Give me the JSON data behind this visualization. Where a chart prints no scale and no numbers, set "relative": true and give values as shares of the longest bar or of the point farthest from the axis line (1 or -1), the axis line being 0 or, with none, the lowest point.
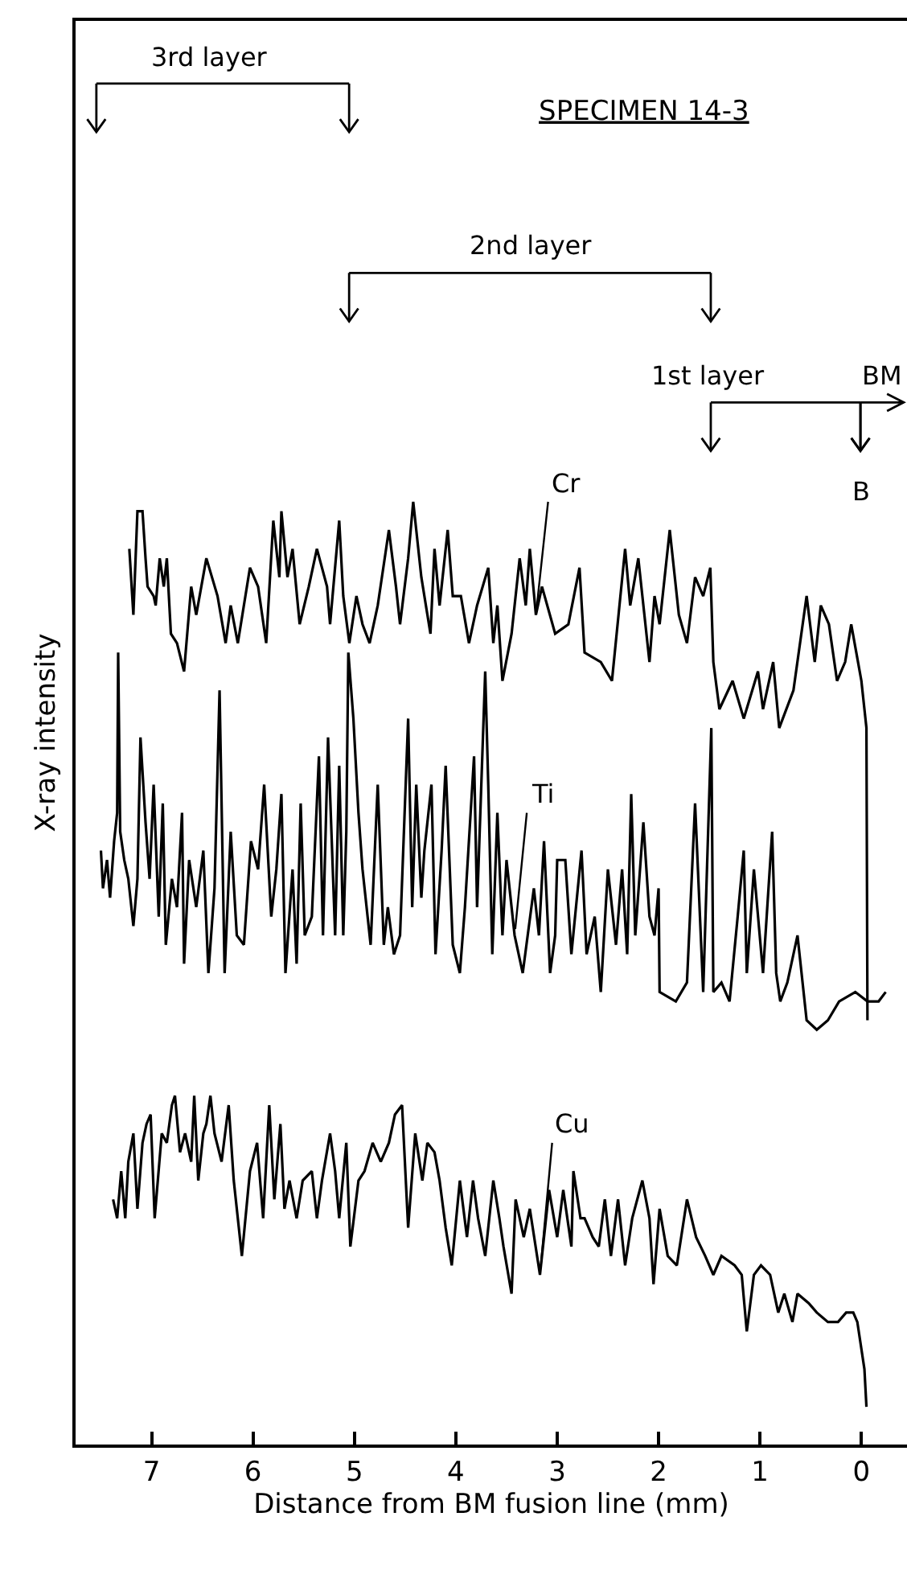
{
  "chart_data": {
    "type": "line",
    "title": "SPECIMEN 14-3",
    "xlabel": "Distance from BM fusion line (mm)",
    "ylabel": "X-ray intensity",
    "relative": true,
    "xlim": [
      7.75,
      -0.45
    ],
    "xticks": [
      7,
      6,
      5,
      4,
      3,
      2,
      1,
      0
    ],
    "legend": false,
    "series": [
      {
        "name": "Cr",
        "color": "#000000",
        "x": [
          7.22,
          7.18,
          7.14,
          7.09,
          7.06,
          7.04,
          6.98,
          6.96,
          6.92,
          6.88,
          6.85,
          6.81,
          6.75,
          6.68,
          6.61,
          6.56,
          6.46,
          6.35,
          6.27,
          6.22,
          6.15,
          6.03,
          5.95,
          5.87,
          5.8,
          5.74,
          5.72,
          5.66,
          5.61,
          5.54,
          5.45,
          5.37,
          5.27,
          5.24,
          5.15,
          5.11,
          5.05,
          4.98,
          4.92,
          4.85,
          4.77,
          4.66,
          4.59,
          4.55,
          4.47,
          4.42,
          4.34,
          4.25,
          4.21,
          4.16,
          4.08,
          4.03,
          3.95,
          3.87,
          3.79,
          3.68,
          3.63,
          3.59,
          3.54,
          3.45,
          3.37,
          3.31,
          3.27,
          3.21,
          3.15,
          3.02,
          2.89,
          2.78,
          2.73,
          2.57,
          2.46,
          2.33,
          2.28,
          2.2,
          2.09,
          2.04,
          1.99,
          1.89,
          1.8,
          1.72,
          1.64,
          1.56,
          1.49,
          1.46,
          1.4,
          1.27,
          1.16,
          1.02,
          0.97,
          0.87,
          0.81,
          0.67,
          0.54,
          0.46,
          0.4,
          0.32,
          0.24,
          0.16,
          0.1,
          0.05,
          0.0,
          -0.05,
          -0.06
        ],
        "values": [
          0.95,
          0.88,
          0.99,
          0.99,
          0.94,
          0.91,
          0.9,
          0.89,
          0.94,
          0.91,
          0.94,
          0.86,
          0.85,
          0.82,
          0.91,
          0.88,
          0.94,
          0.9,
          0.85,
          0.89,
          0.85,
          0.93,
          0.91,
          0.85,
          0.98,
          0.92,
          0.99,
          0.92,
          0.95,
          0.87,
          0.91,
          0.95,
          0.91,
          0.87,
          0.98,
          0.9,
          0.85,
          0.9,
          0.87,
          0.85,
          0.89,
          0.97,
          0.91,
          0.87,
          0.94,
          1.0,
          0.92,
          0.86,
          0.95,
          0.89,
          0.97,
          0.9,
          0.9,
          0.85,
          0.89,
          0.93,
          0.85,
          0.89,
          0.81,
          0.86,
          0.94,
          0.89,
          0.95,
          0.88,
          0.91,
          0.86,
          0.87,
          0.93,
          0.84,
          0.83,
          0.81,
          0.95,
          0.89,
          0.94,
          0.83,
          0.9,
          0.87,
          0.97,
          0.88,
          0.85,
          0.92,
          0.9,
          0.93,
          0.83,
          0.78,
          0.81,
          0.77,
          0.82,
          0.78,
          0.83,
          0.76,
          0.8,
          0.9,
          0.83,
          0.89,
          0.87,
          0.81,
          0.83,
          0.87,
          0.84,
          0.81,
          0.76,
          0.45
        ]
      },
      {
        "name": "Ti",
        "color": "#000000",
        "x": [
          7.5,
          7.48,
          7.44,
          7.41,
          7.37,
          7.34,
          7.33,
          7.31,
          7.27,
          7.23,
          7.18,
          7.14,
          7.11,
          7.06,
          7.02,
          6.98,
          6.93,
          6.89,
          6.86,
          6.8,
          6.75,
          6.7,
          6.68,
          6.63,
          6.56,
          6.49,
          6.44,
          6.38,
          6.33,
          6.28,
          6.22,
          6.16,
          6.09,
          6.02,
          5.95,
          5.89,
          5.82,
          5.77,
          5.72,
          5.68,
          5.61,
          5.57,
          5.53,
          5.49,
          5.42,
          5.35,
          5.31,
          5.26,
          5.19,
          5.15,
          5.11,
          5.08,
          5.06,
          5.01,
          4.96,
          4.92,
          4.84,
          4.77,
          4.71,
          4.67,
          4.61,
          4.55,
          4.47,
          4.43,
          4.39,
          4.34,
          4.31,
          4.24,
          4.2,
          4.14,
          4.1,
          4.03,
          3.96,
          3.91,
          3.82,
          3.79,
          3.71,
          3.68,
          3.64,
          3.59,
          3.54,
          3.5,
          3.42,
          3.34,
          3.23,
          3.18,
          3.13,
          3.07,
          3.02,
          3.0,
          2.92,
          2.86,
          2.76,
          2.71,
          2.63,
          2.57,
          2.5,
          2.42,
          2.36,
          2.31,
          2.27,
          2.23,
          2.15,
          2.09,
          2.04,
          2.0,
          1.99,
          1.83,
          1.72,
          1.64,
          1.56,
          1.48,
          1.46,
          1.38,
          1.3,
          1.22,
          1.16,
          1.13,
          1.06,
          0.97,
          0.88,
          0.84,
          0.8,
          0.73,
          0.63,
          0.54,
          0.44,
          0.33,
          0.22,
          0.06,
          -0.06,
          -0.17,
          -0.24
        ],
        "values": [
          0.63,
          0.59,
          0.62,
          0.58,
          0.64,
          0.67,
          0.84,
          0.65,
          0.62,
          0.6,
          0.55,
          0.6,
          0.75,
          0.66,
          0.6,
          0.7,
          0.56,
          0.68,
          0.53,
          0.6,
          0.57,
          0.67,
          0.51,
          0.62,
          0.57,
          0.63,
          0.5,
          0.59,
          0.8,
          0.5,
          0.65,
          0.54,
          0.53,
          0.64,
          0.61,
          0.7,
          0.56,
          0.61,
          0.69,
          0.5,
          0.61,
          0.51,
          0.68,
          0.54,
          0.56,
          0.73,
          0.54,
          0.75,
          0.54,
          0.72,
          0.54,
          0.65,
          0.84,
          0.77,
          0.67,
          0.61,
          0.53,
          0.7,
          0.53,
          0.57,
          0.52,
          0.54,
          0.77,
          0.57,
          0.7,
          0.58,
          0.63,
          0.7,
          0.52,
          0.63,
          0.72,
          0.53,
          0.5,
          0.57,
          0.73,
          0.57,
          0.82,
          0.7,
          0.52,
          0.67,
          0.54,
          0.62,
          0.54,
          0.5,
          0.59,
          0.54,
          0.64,
          0.5,
          0.54,
          0.62,
          0.62,
          0.52,
          0.63,
          0.52,
          0.56,
          0.48,
          0.61,
          0.53,
          0.61,
          0.52,
          0.69,
          0.54,
          0.66,
          0.56,
          0.54,
          0.59,
          0.48,
          0.47,
          0.49,
          0.68,
          0.48,
          0.76,
          0.48,
          0.49,
          0.47,
          0.56,
          0.63,
          0.5,
          0.61,
          0.5,
          0.65,
          0.5,
          0.47,
          0.49,
          0.54,
          0.45,
          0.44,
          0.45,
          0.47,
          0.48,
          0.47,
          0.47,
          0.48
        ]
      },
      {
        "name": "Cu",
        "color": "#000000",
        "x": [
          7.38,
          7.34,
          7.3,
          7.26,
          7.23,
          7.18,
          7.14,
          7.09,
          7.05,
          7.01,
          6.97,
          6.9,
          6.85,
          6.8,
          6.77,
          6.72,
          6.67,
          6.61,
          6.58,
          6.54,
          6.49,
          6.46,
          6.42,
          6.38,
          6.31,
          6.24,
          6.19,
          6.11,
          6.03,
          5.96,
          5.9,
          5.84,
          5.79,
          5.73,
          5.69,
          5.64,
          5.57,
          5.51,
          5.42,
          5.37,
          5.32,
          5.24,
          5.19,
          5.15,
          5.08,
          5.04,
          4.96,
          4.9,
          4.82,
          4.74,
          4.66,
          4.6,
          4.53,
          4.47,
          4.4,
          4.33,
          4.28,
          4.21,
          4.16,
          4.1,
          4.04,
          3.96,
          3.89,
          3.83,
          3.78,
          3.71,
          3.63,
          3.57,
          3.53,
          3.45,
          3.41,
          3.33,
          3.27,
          3.17,
          3.08,
          3.0,
          2.94,
          2.86,
          2.84,
          2.77,
          2.73,
          2.65,
          2.59,
          2.53,
          2.47,
          2.4,
          2.33,
          2.26,
          2.16,
          2.09,
          2.05,
          1.99,
          1.91,
          1.82,
          1.72,
          1.63,
          1.54,
          1.46,
          1.38,
          1.25,
          1.18,
          1.13,
          1.06,
          0.99,
          0.9,
          0.82,
          0.76,
          0.68,
          0.63,
          0.52,
          0.44,
          0.33,
          0.23,
          0.15,
          0.08,
          0.04,
          -0.03,
          -0.05
        ],
        "values": [
          0.26,
          0.24,
          0.29,
          0.24,
          0.3,
          0.33,
          0.25,
          0.32,
          0.34,
          0.35,
          0.24,
          0.33,
          0.32,
          0.36,
          0.37,
          0.31,
          0.33,
          0.3,
          0.37,
          0.28,
          0.33,
          0.34,
          0.37,
          0.33,
          0.3,
          0.36,
          0.28,
          0.2,
          0.29,
          0.32,
          0.24,
          0.36,
          0.26,
          0.34,
          0.25,
          0.28,
          0.24,
          0.28,
          0.29,
          0.24,
          0.28,
          0.33,
          0.29,
          0.24,
          0.32,
          0.21,
          0.28,
          0.29,
          0.32,
          0.3,
          0.32,
          0.35,
          0.36,
          0.23,
          0.33,
          0.28,
          0.32,
          0.31,
          0.28,
          0.23,
          0.19,
          0.28,
          0.22,
          0.28,
          0.24,
          0.2,
          0.28,
          0.24,
          0.21,
          0.16,
          0.26,
          0.22,
          0.25,
          0.18,
          0.27,
          0.22,
          0.27,
          0.21,
          0.29,
          0.24,
          0.24,
          0.22,
          0.21,
          0.26,
          0.2,
          0.26,
          0.19,
          0.24,
          0.28,
          0.24,
          0.17,
          0.25,
          0.2,
          0.19,
          0.26,
          0.22,
          0.2,
          0.18,
          0.2,
          0.19,
          0.18,
          0.12,
          0.18,
          0.19,
          0.18,
          0.14,
          0.16,
          0.13,
          0.16,
          0.15,
          0.14,
          0.13,
          0.13,
          0.14,
          0.14,
          0.13,
          0.08,
          0.04
        ]
      }
    ],
    "annotations": [
      "3rd layer",
      "2nd layer",
      "1st layer",
      "BM",
      "B"
    ]
  }
}
